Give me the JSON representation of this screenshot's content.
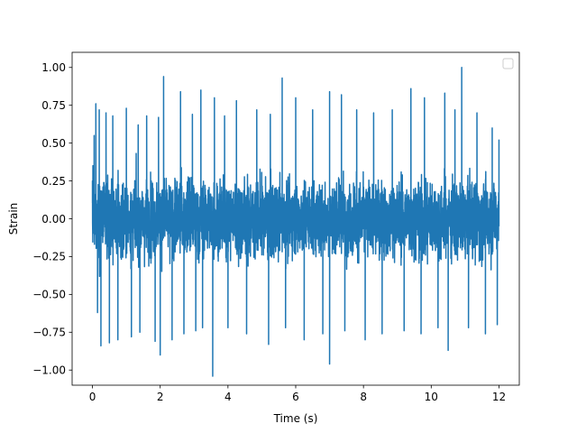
{
  "chart_data": {
    "type": "line",
    "title": "",
    "xlabel": "Time (s)",
    "ylabel": "Strain",
    "xlim": [
      -0.6,
      12.6
    ],
    "ylim": [
      -1.1,
      1.1
    ],
    "xticks": [
      0,
      2,
      4,
      6,
      8,
      10,
      12
    ],
    "xtick_labels": [
      "0",
      "2",
      "4",
      "6",
      "8",
      "10",
      "12"
    ],
    "yticks": [
      -1.0,
      -0.75,
      -0.5,
      -0.25,
      0.0,
      0.25,
      0.5,
      0.75,
      1.0
    ],
    "ytick_labels": [
      "−1.00",
      "−0.75",
      "−0.50",
      "−0.25",
      "0.00",
      "0.25",
      "0.50",
      "0.75",
      "1.00"
    ],
    "grid": false,
    "legend": {
      "placement": "upper-right",
      "entries": []
    },
    "colors": {
      "series": "#1f77b4",
      "axes": "#000000",
      "background": "#ffffff"
    },
    "series": [
      {
        "description": "dense noise signal sampled from t = 0 to 12 s, values between about -1.04 and 1.0",
        "x_start": 0,
        "x_end": 12,
        "points": [
          [
            0.0,
            0.25
          ],
          [
            0.05,
            0.55
          ],
          [
            0.1,
            0.76
          ],
          [
            0.15,
            -0.62
          ],
          [
            0.2,
            0.72
          ],
          [
            0.25,
            -0.84
          ],
          [
            0.4,
            0.7
          ],
          [
            0.5,
            -0.82
          ],
          [
            0.6,
            0.68
          ],
          [
            0.75,
            -0.8
          ],
          [
            1.0,
            0.73
          ],
          [
            1.15,
            -0.78
          ],
          [
            1.35,
            0.62
          ],
          [
            1.4,
            -0.75
          ],
          [
            1.6,
            0.68
          ],
          [
            1.85,
            -0.81
          ],
          [
            1.95,
            0.67
          ],
          [
            2.0,
            -0.9
          ],
          [
            2.1,
            0.94
          ],
          [
            2.35,
            -0.8
          ],
          [
            2.6,
            0.84
          ],
          [
            2.7,
            -0.76
          ],
          [
            2.95,
            0.69
          ],
          [
            3.05,
            -0.74
          ],
          [
            3.2,
            0.85
          ],
          [
            3.25,
            -0.72
          ],
          [
            3.55,
            -1.04
          ],
          [
            3.6,
            0.8
          ],
          [
            3.9,
            0.68
          ],
          [
            4.0,
            -0.72
          ],
          [
            4.25,
            0.78
          ],
          [
            4.55,
            -0.76
          ],
          [
            4.85,
            0.72
          ],
          [
            5.2,
            -0.83
          ],
          [
            5.25,
            0.69
          ],
          [
            5.6,
            0.93
          ],
          [
            5.7,
            -0.72
          ],
          [
            6.0,
            0.8
          ],
          [
            6.25,
            -0.8
          ],
          [
            6.5,
            0.72
          ],
          [
            6.8,
            -0.76
          ],
          [
            7.0,
            0.84
          ],
          [
            7.0,
            -0.96
          ],
          [
            7.35,
            0.82
          ],
          [
            7.45,
            -0.74
          ],
          [
            7.8,
            0.72
          ],
          [
            8.05,
            -0.8
          ],
          [
            8.3,
            0.7
          ],
          [
            8.55,
            -0.76
          ],
          [
            8.85,
            0.72
          ],
          [
            9.2,
            -0.74
          ],
          [
            9.4,
            0.86
          ],
          [
            9.7,
            -0.76
          ],
          [
            9.8,
            0.8
          ],
          [
            10.2,
            -0.72
          ],
          [
            10.4,
            0.83
          ],
          [
            10.5,
            -0.87
          ],
          [
            10.7,
            0.72
          ],
          [
            10.9,
            1.0
          ],
          [
            11.1,
            -0.72
          ],
          [
            11.35,
            0.7
          ],
          [
            11.6,
            -0.76
          ],
          [
            11.8,
            0.6
          ],
          [
            11.95,
            -0.7
          ],
          [
            12.0,
            0.52
          ],
          [
            12.0,
            -0.05
          ]
        ]
      }
    ]
  }
}
